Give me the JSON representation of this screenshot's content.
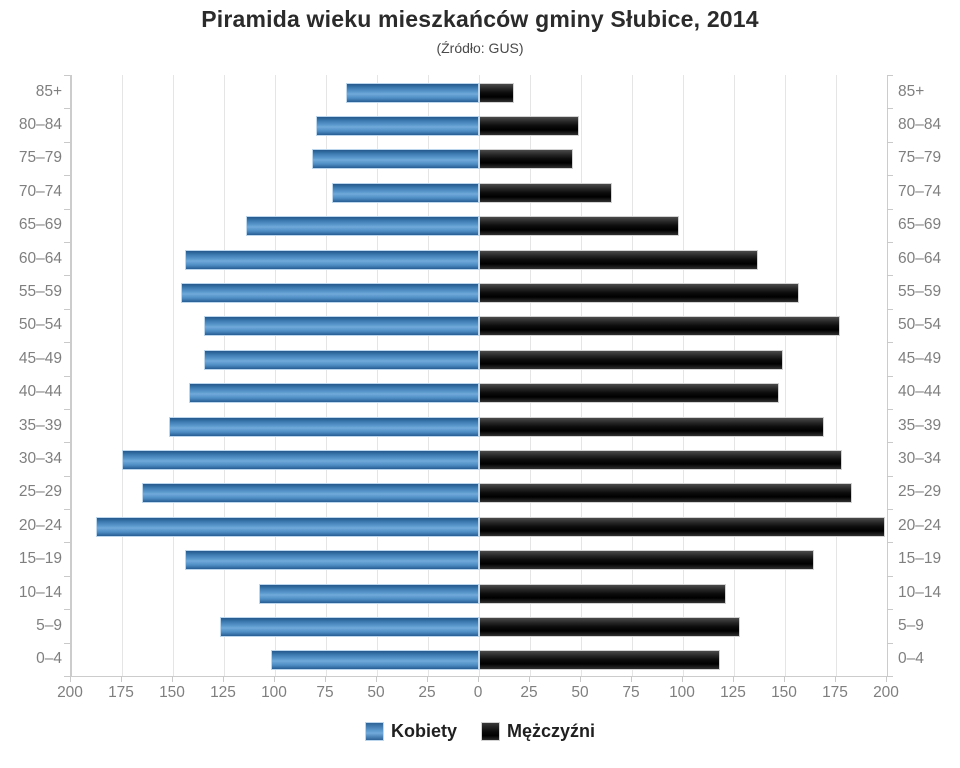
{
  "title": "Piramida wieku mieszkańców gminy Słubice, 2014",
  "subtitle": "(Źródło: GUS)",
  "colors": {
    "kobiety": "#4a86c6",
    "mezczyzni": "#111111",
    "axis": "#cccccc",
    "gridline": "#e5e5e5",
    "labels": "#7f7f7f",
    "title_text": "#2b2b2b"
  },
  "legend": {
    "items": [
      {
        "label": "Kobiety",
        "color": "#4a86c6"
      },
      {
        "label": "Mężczyźni",
        "color": "#111111"
      }
    ]
  },
  "chart_data": {
    "type": "bar",
    "subtype": "population-pyramid",
    "title": "Piramida wieku mieszkańców gminy Słubice, 2014",
    "subtitle": "(Źródło: GUS)",
    "categories": [
      "85+",
      "80–84",
      "75–79",
      "70–74",
      "65–69",
      "60–64",
      "55–59",
      "50–54",
      "45–49",
      "40–44",
      "35–39",
      "30–34",
      "25–29",
      "20–24",
      "15–19",
      "10–14",
      "5–9",
      "0–4"
    ],
    "series": [
      {
        "name": "Kobiety",
        "side": "left",
        "color": "#4a86c6",
        "values": [
          64,
          79,
          81,
          71,
          113,
          143,
          145,
          134,
          134,
          141,
          151,
          174,
          164,
          187,
          143,
          107,
          126,
          101
        ]
      },
      {
        "name": "Mężczyźni",
        "side": "right",
        "color": "#111111",
        "values": [
          16,
          48,
          45,
          64,
          97,
          136,
          156,
          176,
          148,
          146,
          168,
          177,
          182,
          198,
          163,
          120,
          127,
          117
        ]
      }
    ],
    "x_tick_labels": [
      "200",
      "175",
      "150",
      "125",
      "100",
      "75",
      "50",
      "25",
      "0",
      "25",
      "50",
      "75",
      "100",
      "125",
      "150",
      "175",
      "200"
    ],
    "x_tick_step": 25,
    "xlim": [
      -200,
      200
    ],
    "grid": true,
    "legend_position": "bottom"
  }
}
